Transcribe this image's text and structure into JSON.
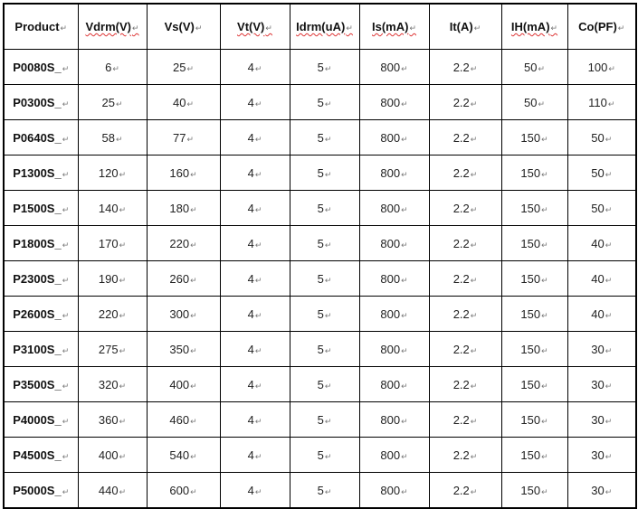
{
  "table": {
    "headers": [
      "Product",
      "Vdrm(V)",
      "Vs(V)",
      "Vt(V)",
      "Idrm(uA)",
      "Is(mA)",
      "It(A)",
      "IH(mA)",
      "Co(PF)"
    ],
    "spellcheck_underlined": [
      1,
      3,
      4,
      5,
      7
    ],
    "rows": [
      [
        "P0080S_",
        "6",
        "25",
        "4",
        "5",
        "800",
        "2.2",
        "50",
        "100"
      ],
      [
        "P0300S_",
        "25",
        "40",
        "4",
        "5",
        "800",
        "2.2",
        "50",
        "110"
      ],
      [
        "P0640S_",
        "58",
        "77",
        "4",
        "5",
        "800",
        "2.2",
        "150",
        "50"
      ],
      [
        "P1300S_",
        "120",
        "160",
        "4",
        "5",
        "800",
        "2.2",
        "150",
        "50"
      ],
      [
        "P1500S_",
        "140",
        "180",
        "4",
        "5",
        "800",
        "2.2",
        "150",
        "50"
      ],
      [
        "P1800S_",
        "170",
        "220",
        "4",
        "5",
        "800",
        "2.2",
        "150",
        "40"
      ],
      [
        "P2300S_",
        "190",
        "260",
        "4",
        "5",
        "800",
        "2.2",
        "150",
        "40"
      ],
      [
        "P2600S_",
        "220",
        "300",
        "4",
        "5",
        "800",
        "2.2",
        "150",
        "40"
      ],
      [
        "P3100S_",
        "275",
        "350",
        "4",
        "5",
        "800",
        "2.2",
        "150",
        "30"
      ],
      [
        "P3500S_",
        "320",
        "400",
        "4",
        "5",
        "800",
        "2.2",
        "150",
        "30"
      ],
      [
        "P4000S_",
        "360",
        "460",
        "4",
        "5",
        "800",
        "2.2",
        "150",
        "30"
      ],
      [
        "P4500S_",
        "400",
        "540",
        "4",
        "5",
        "800",
        "2.2",
        "150",
        "30"
      ],
      [
        "P5000S_",
        "440",
        "600",
        "4",
        "5",
        "800",
        "2.2",
        "150",
        "30"
      ]
    ]
  }
}
